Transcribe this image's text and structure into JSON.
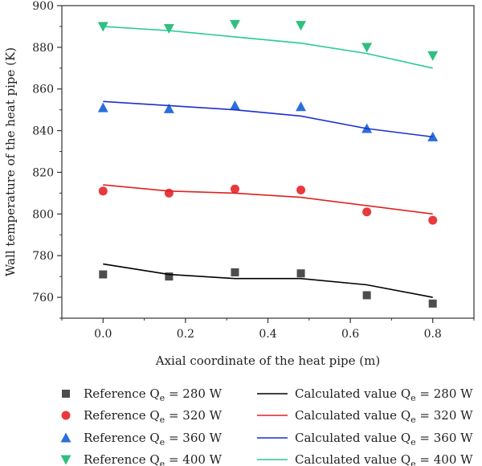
{
  "chart_data": {
    "type": "scatter",
    "title": "",
    "xlabel": "Axial coordinate of the heat pipe (m)",
    "ylabel": "Wall temperature of the heat pipe (K)",
    "xlim": [
      -0.1,
      0.9
    ],
    "ylim": [
      750,
      900
    ],
    "xticks": [
      0.0,
      0.2,
      0.4,
      0.6,
      0.8
    ],
    "xtick_labels": [
      "0.0",
      "0.2",
      "0.4",
      "0.6",
      "0.8"
    ],
    "yticks": [
      760,
      780,
      800,
      820,
      840,
      860,
      880,
      900
    ],
    "ytick_labels": [
      "760",
      "780",
      "800",
      "820",
      "840",
      "860",
      "880",
      "900"
    ],
    "grid": false,
    "legend_position": "bottom",
    "series": [
      {
        "name_prefix": "Reference Q",
        "name_sub": "e",
        "name_suffix": " = 280 W",
        "kind": "markers",
        "marker": "square",
        "color": "#4d4d4d",
        "x": [
          0.0,
          0.16,
          0.32,
          0.48,
          0.64,
          0.8
        ],
        "y": [
          771,
          770,
          772,
          771.5,
          761,
          757
        ]
      },
      {
        "name_prefix": "Reference Q",
        "name_sub": "e",
        "name_suffix": " = 320 W",
        "kind": "markers",
        "marker": "circle",
        "color": "#e8393d",
        "x": [
          0.0,
          0.16,
          0.32,
          0.48,
          0.64,
          0.8
        ],
        "y": [
          811,
          810,
          812,
          811.5,
          801,
          797
        ]
      },
      {
        "name_prefix": "Reference Q",
        "name_sub": "e",
        "name_suffix": " = 360 W",
        "kind": "markers",
        "marker": "triangle-up",
        "color": "#2a6fdb",
        "x": [
          0.0,
          0.16,
          0.32,
          0.48,
          0.64,
          0.8
        ],
        "y": [
          851,
          850.5,
          852,
          851.5,
          841,
          837
        ]
      },
      {
        "name_prefix": "Reference Q",
        "name_sub": "e",
        "name_suffix": " = 400 W",
        "kind": "markers",
        "marker": "triangle-down",
        "color": "#2fbf7f",
        "x": [
          0.0,
          0.16,
          0.32,
          0.48,
          0.64,
          0.8
        ],
        "y": [
          890,
          889,
          891,
          890.5,
          880,
          876
        ]
      },
      {
        "name_prefix": "Calculated value Q",
        "name_sub": "e",
        "name_suffix": " = 280 W",
        "kind": "line",
        "color": "#000000",
        "x": [
          0.0,
          0.16,
          0.32,
          0.48,
          0.64,
          0.8
        ],
        "y": [
          776,
          771,
          769,
          769,
          766,
          760
        ]
      },
      {
        "name_prefix": "Calculated value Q",
        "name_sub": "e",
        "name_suffix": " = 320 W",
        "kind": "line",
        "color": "#e02020",
        "x": [
          0.0,
          0.16,
          0.32,
          0.48,
          0.64,
          0.8
        ],
        "y": [
          814,
          811,
          810,
          808,
          804,
          800
        ]
      },
      {
        "name_prefix": "Calculated value Q",
        "name_sub": "e",
        "name_suffix": " = 360 W",
        "kind": "line",
        "color": "#1a2fd0",
        "x": [
          0.0,
          0.16,
          0.32,
          0.48,
          0.64,
          0.8
        ],
        "y": [
          854,
          852,
          850,
          847,
          841,
          837
        ]
      },
      {
        "name_prefix": "Calculated value Q",
        "name_sub": "e",
        "name_suffix": " = 400 W",
        "kind": "line",
        "color": "#26c99a",
        "x": [
          0.0,
          0.16,
          0.32,
          0.48,
          0.64,
          0.8
        ],
        "y": [
          890,
          888,
          885,
          882,
          877,
          870
        ]
      }
    ]
  }
}
